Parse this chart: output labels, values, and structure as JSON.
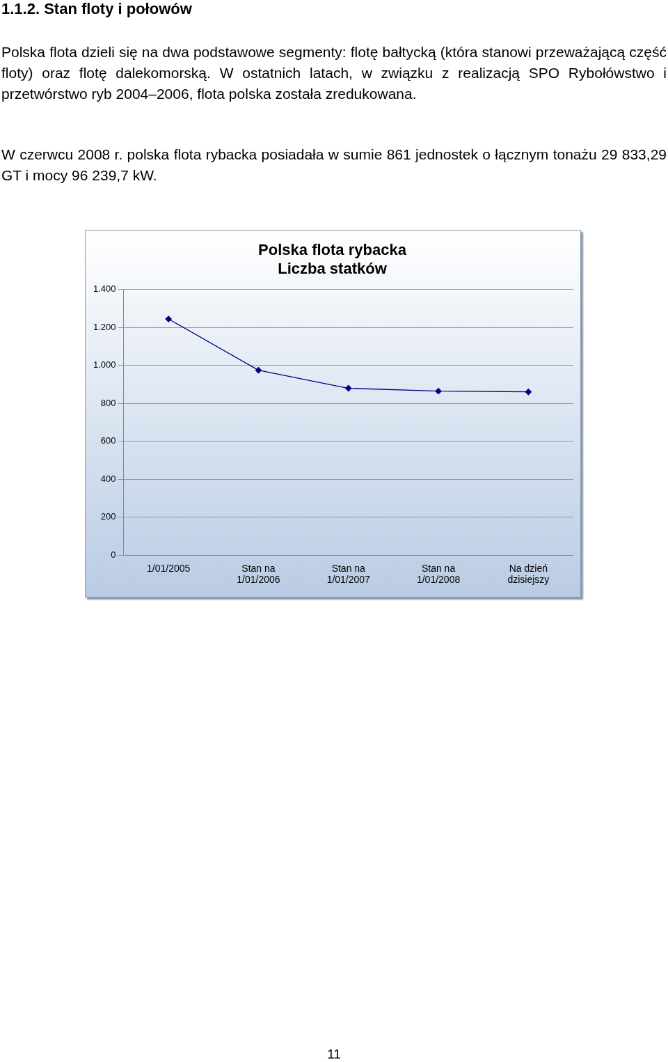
{
  "chart_data": {
    "type": "line",
    "title": "Polska flota rybacka",
    "subtitle": "Liczba statków",
    "categories": [
      "1/01/2005",
      "Stan na\n1/01/2006",
      "Stan na\n1/01/2007",
      "Stan na\n1/01/2008",
      "Na dzień\ndzisiejszy"
    ],
    "series": [
      {
        "color": "#000080",
        "values": [
          1245,
          975,
          880,
          865,
          861
        ]
      }
    ],
    "ylim": [
      0,
      1400
    ],
    "yticks": [
      0,
      200,
      400,
      600,
      800,
      {
        "value": 1000,
        "label": "1.000"
      },
      {
        "value": 1200,
        "label": "1.200"
      },
      {
        "value": 1400,
        "label": "1.400"
      }
    ],
    "grid": "y",
    "legend": false,
    "marker": "diamond",
    "line_style": "solid",
    "annotations": [
      "1.1.2. Stan floty i połowów",
      "Polska flota dzieli się na dwa podstawowe segmenty: flotę bałtycką (która stanowi przeważającą część floty) oraz flotę dalekomorską. W ostatnich latach, w związku z realizacją SPO Rybołówstwo i przetwórstwo ryb 2004–2006, flota polska została zredukowana.",
      "W czerwcu 2008 r. polska flota rybacka posiadała w sumie 861 jednostek o łącznym tonażu 29 833,29 GT i mocy 96 239,7 kW.",
      "11"
    ]
  }
}
